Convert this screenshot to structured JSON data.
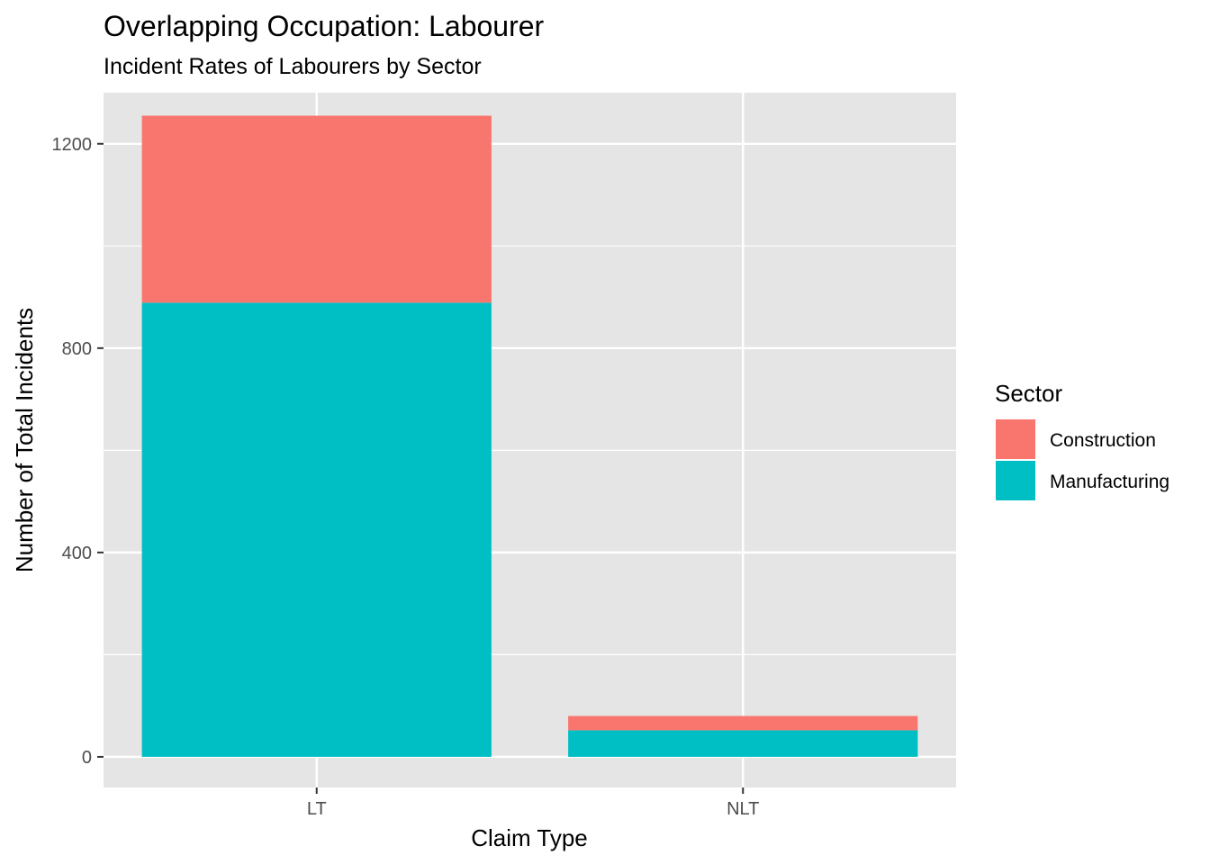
{
  "chart_data": {
    "type": "bar",
    "stacked": true,
    "title": "Overlapping Occupation: Labourer",
    "subtitle": "Incident Rates of Labourers by Sector",
    "xlabel": "Claim Type",
    "ylabel": "Number of Total Incidents",
    "categories": [
      "LT",
      "NLT"
    ],
    "series": [
      {
        "name": "Construction",
        "values": [
          366,
          28
        ],
        "color": "#F8766D"
      },
      {
        "name": "Manufacturing",
        "values": [
          889,
          52
        ],
        "color": "#00BFC4"
      }
    ],
    "stack_order_bottom_to_top": [
      "Manufacturing",
      "Construction"
    ],
    "ylim": [
      -60,
      1300
    ],
    "y_ticks": [
      0,
      400,
      800,
      1200
    ],
    "y_tick_labels": [
      "0",
      "400",
      "800",
      "1200"
    ],
    "grid": true,
    "legend": {
      "title": "Sector",
      "position": "right"
    },
    "panel_background": "#E5E5E5"
  }
}
